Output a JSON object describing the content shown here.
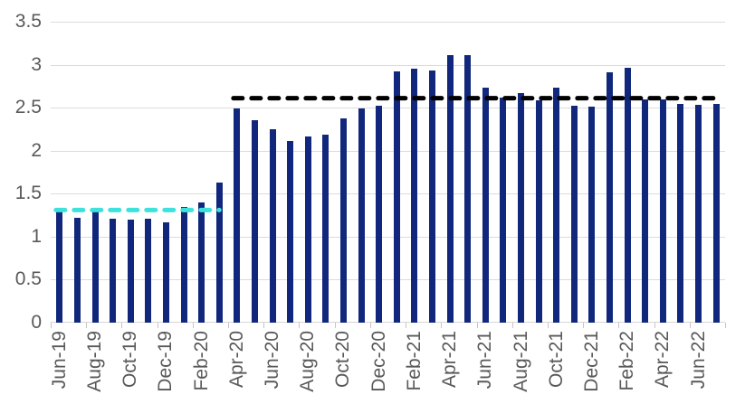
{
  "chart_data": {
    "type": "bar",
    "title": "",
    "categories": [
      "Jun-19",
      "Jul-19",
      "Aug-19",
      "Sep-19",
      "Oct-19",
      "Nov-19",
      "Dec-19",
      "Jan-20",
      "Feb-20",
      "Mar-20",
      "Apr-20",
      "May-20",
      "Jun-20",
      "Jul-20",
      "Aug-20",
      "Sep-20",
      "Oct-20",
      "Nov-20",
      "Dec-20",
      "Jan-21",
      "Feb-21",
      "Mar-21",
      "Apr-21",
      "May-21",
      "Jun-21",
      "Jul-21",
      "Aug-21",
      "Sep-21",
      "Oct-21",
      "Nov-21",
      "Dec-21",
      "Jan-22",
      "Feb-22",
      "Mar-22",
      "Apr-22",
      "May-22",
      "Jun-22",
      "Jul-22"
    ],
    "values": [
      1.29,
      1.22,
      1.33,
      1.21,
      1.2,
      1.21,
      1.17,
      1.35,
      1.4,
      1.63,
      2.49,
      2.35,
      2.25,
      2.11,
      2.17,
      2.19,
      2.38,
      2.49,
      2.52,
      2.92,
      2.95,
      2.93,
      3.11,
      3.11,
      2.73,
      2.62,
      2.67,
      2.59,
      2.73,
      2.52,
      2.51,
      2.91,
      2.96,
      2.6,
      2.6,
      2.54,
      2.53,
      2.54
    ],
    "x_tick_labels": [
      "Jun-19",
      "Aug-19",
      "Oct-19",
      "Dec-19",
      "Feb-20",
      "Apr-20",
      "Jun-20",
      "Aug-20",
      "Oct-20",
      "Dec-20",
      "Feb-21",
      "Apr-21",
      "Jun-21",
      "Aug-21",
      "Oct-21",
      "Dec-21",
      "Feb-22",
      "Apr-22",
      "Jun-22"
    ],
    "x_label_every": 2,
    "y_ticks": [
      0,
      0.5,
      1,
      1.5,
      2,
      2.5,
      3,
      3.5
    ],
    "y_tick_labels": [
      "0",
      "0.5",
      "1",
      "1.5",
      "2",
      "2.5",
      "3",
      "3.5"
    ],
    "ylim": [
      0,
      3.5
    ],
    "xlabel": "",
    "ylabel": "",
    "grid": true,
    "legend_position": "none",
    "reference_lines": [
      {
        "name": "dashed-average-line-2019",
        "value": 1.31,
        "color": "#3ee2dc",
        "style": "dashed",
        "start_category": "Jun-19",
        "end_category": "Mar-20"
      },
      {
        "name": "dashed-average-line-post-2020",
        "value": 2.61,
        "color": "#000000",
        "style": "dashed",
        "start_category": "Apr-20",
        "end_category": "Jul-22"
      }
    ],
    "colors": {
      "bar": "#10277c",
      "grid": "#dbdbdb",
      "axis_text": "#595959",
      "tick_mark": "#c6c6c6"
    }
  }
}
